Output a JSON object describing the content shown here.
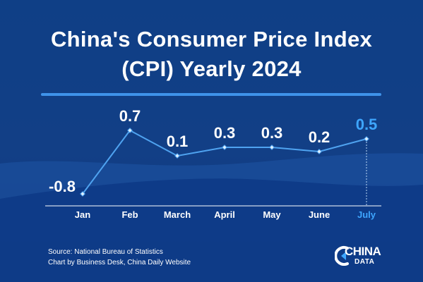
{
  "title_line1": "China's Consumer Price Index",
  "title_line2": "(CPI) Yearly 2024",
  "source_line1": "Source: National Bureau of Statistics",
  "source_line2": "Chart by Business Desk, China Daily Website",
  "logo": {
    "word": "CHINA",
    "sub": "DATA"
  },
  "colors": {
    "background": "#123f86",
    "line": "#4fa3f0",
    "highlight": "#3ea6ff",
    "text": "#ffffff"
  },
  "chart_data": {
    "type": "line",
    "title": "China's Consumer Price Index (CPI) Yearly 2024",
    "categories": [
      "Jan",
      "Feb",
      "March",
      "April",
      "May",
      "June",
      "July"
    ],
    "values": [
      -0.8,
      0.7,
      0.1,
      0.3,
      0.3,
      0.2,
      0.5
    ],
    "value_labels": [
      "-0.8",
      "0.7",
      "0.1",
      "0.3",
      "0.3",
      "0.2",
      "0.5"
    ],
    "highlight_index": 6,
    "ylim": [
      -0.8,
      0.7
    ],
    "grid": false,
    "legend": "none"
  }
}
